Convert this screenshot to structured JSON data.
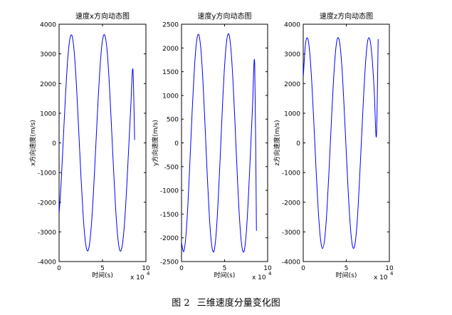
{
  "figure": {
    "caption_number": "图 2",
    "caption_text": "三维速度分量变化图"
  },
  "chart_data": [
    {
      "type": "line",
      "title": "速度x方向动态图",
      "xlabel": "时间(s)",
      "ylabel": "x方向速度(m/s)",
      "x_multiplier_label": "x 10",
      "x_multiplier_exp": "4",
      "xlim": [
        0,
        10
      ],
      "ylim": [
        -4000,
        4000
      ],
      "xticks": [
        "0",
        "5",
        "10"
      ],
      "yticks": [
        "-4000",
        "-3000",
        "-2000",
        "-1000",
        "0",
        "1000",
        "2000",
        "3000",
        "4000"
      ],
      "grid": false,
      "line_color": "#0000ff",
      "series": [
        {
          "x_unit_note": "x in units of 1e4 s",
          "x": [
            0,
            0.25,
            0.5,
            0.75,
            1.0,
            1.25,
            1.5,
            1.75,
            2.0,
            2.25,
            2.5,
            2.75,
            3.0,
            3.25,
            3.5,
            3.75,
            4.0,
            4.25,
            4.5,
            4.75,
            5.0,
            5.25,
            5.5,
            5.75,
            6.0,
            6.25,
            6.5,
            6.75,
            7.0,
            7.25,
            7.5,
            7.75,
            8.0,
            8.25,
            8.5,
            8.7
          ],
          "y": [
            -2400,
            -1270,
            210,
            1660,
            2840,
            3520,
            3600,
            3040,
            1940,
            480,
            -1020,
            -2340,
            -3260,
            -3640,
            -3420,
            -2650,
            -1440,
            20,
            1480,
            2690,
            3460,
            3640,
            3200,
            2180,
            760,
            -760,
            -2150,
            -3150,
            -3630,
            -3500,
            -2840,
            -1700,
            -270,
            1180,
            2480,
            100
          ]
        }
      ]
    },
    {
      "type": "line",
      "title": "速度y方向动态图",
      "xlabel": "时间(s)",
      "ylabel": "y方向速度(m/s)",
      "x_multiplier_label": "x 10",
      "x_multiplier_exp": "4",
      "xlim": [
        0,
        10
      ],
      "ylim": [
        -2500,
        2500
      ],
      "xticks": [
        "0",
        "5",
        "10"
      ],
      "yticks": [
        "-2500",
        "-2000",
        "-1500",
        "-1000",
        "-500",
        "0",
        "500",
        "1000",
        "1500",
        "2000",
        "2500"
      ],
      "grid": false,
      "line_color": "#0000ff",
      "series": [
        {
          "x_unit_note": "x in units of 1e4 s",
          "x": [
            0,
            0.25,
            0.5,
            0.75,
            1.0,
            1.25,
            1.5,
            1.75,
            2.0,
            2.25,
            2.5,
            2.75,
            3.0,
            3.25,
            3.5,
            3.75,
            4.0,
            4.25,
            4.5,
            4.75,
            5.0,
            5.25,
            5.5,
            5.75,
            6.0,
            6.25,
            6.5,
            6.75,
            7.0,
            7.25,
            7.5,
            7.75,
            8.0,
            8.25,
            8.5,
            8.7
          ],
          "y": [
            -2100,
            -2290,
            -1980,
            -1270,
            -300,
            720,
            1580,
            2140,
            2280,
            1970,
            1260,
            300,
            -730,
            -1600,
            -2150,
            -2290,
            -1960,
            -1230,
            -270,
            760,
            1620,
            2160,
            2290,
            1950,
            1220,
            250,
            -780,
            -1640,
            -2170,
            -2290,
            -1940,
            -1200,
            -230,
            790,
            1650,
            -1850
          ]
        }
      ]
    },
    {
      "type": "line",
      "title": "速度z方向动态图",
      "xlabel": "时间(s)",
      "ylabel": "z方向速度(m/s)",
      "x_multiplier_label": "x 10",
      "x_multiplier_exp": "4",
      "xlim": [
        0,
        10
      ],
      "ylim": [
        -4000,
        4000
      ],
      "xticks": [
        "0",
        "5",
        "10"
      ],
      "yticks": [
        "-4000",
        "-3000",
        "-2000",
        "-1000",
        "0",
        "1000",
        "2000",
        "3000",
        "4000"
      ],
      "grid": false,
      "line_color": "#0000ff",
      "series": [
        {
          "x_unit_note": "x in units of 1e4 s",
          "x": [
            0,
            0.25,
            0.5,
            0.75,
            1.0,
            1.25,
            1.5,
            1.75,
            2.0,
            2.25,
            2.5,
            2.75,
            3.0,
            3.25,
            3.5,
            3.75,
            4.0,
            4.25,
            4.5,
            4.75,
            5.0,
            5.25,
            5.5,
            5.75,
            6.0,
            6.25,
            6.5,
            6.75,
            7.0,
            7.25,
            7.5,
            7.75,
            8.0,
            8.25,
            8.5,
            8.7
          ],
          "y": [
            2200,
            3300,
            3530,
            3060,
            2000,
            570,
            -950,
            -2300,
            -3230,
            -3560,
            -3210,
            -2270,
            -900,
            610,
            2030,
            3080,
            3540,
            3340,
            2510,
            1180,
            -330,
            -1790,
            -2930,
            -3510,
            -3430,
            -2710,
            -1460,
            40,
            1520,
            2760,
            3460,
            3470,
            2850,
            1700,
            240,
            3500
          ]
        }
      ]
    }
  ]
}
